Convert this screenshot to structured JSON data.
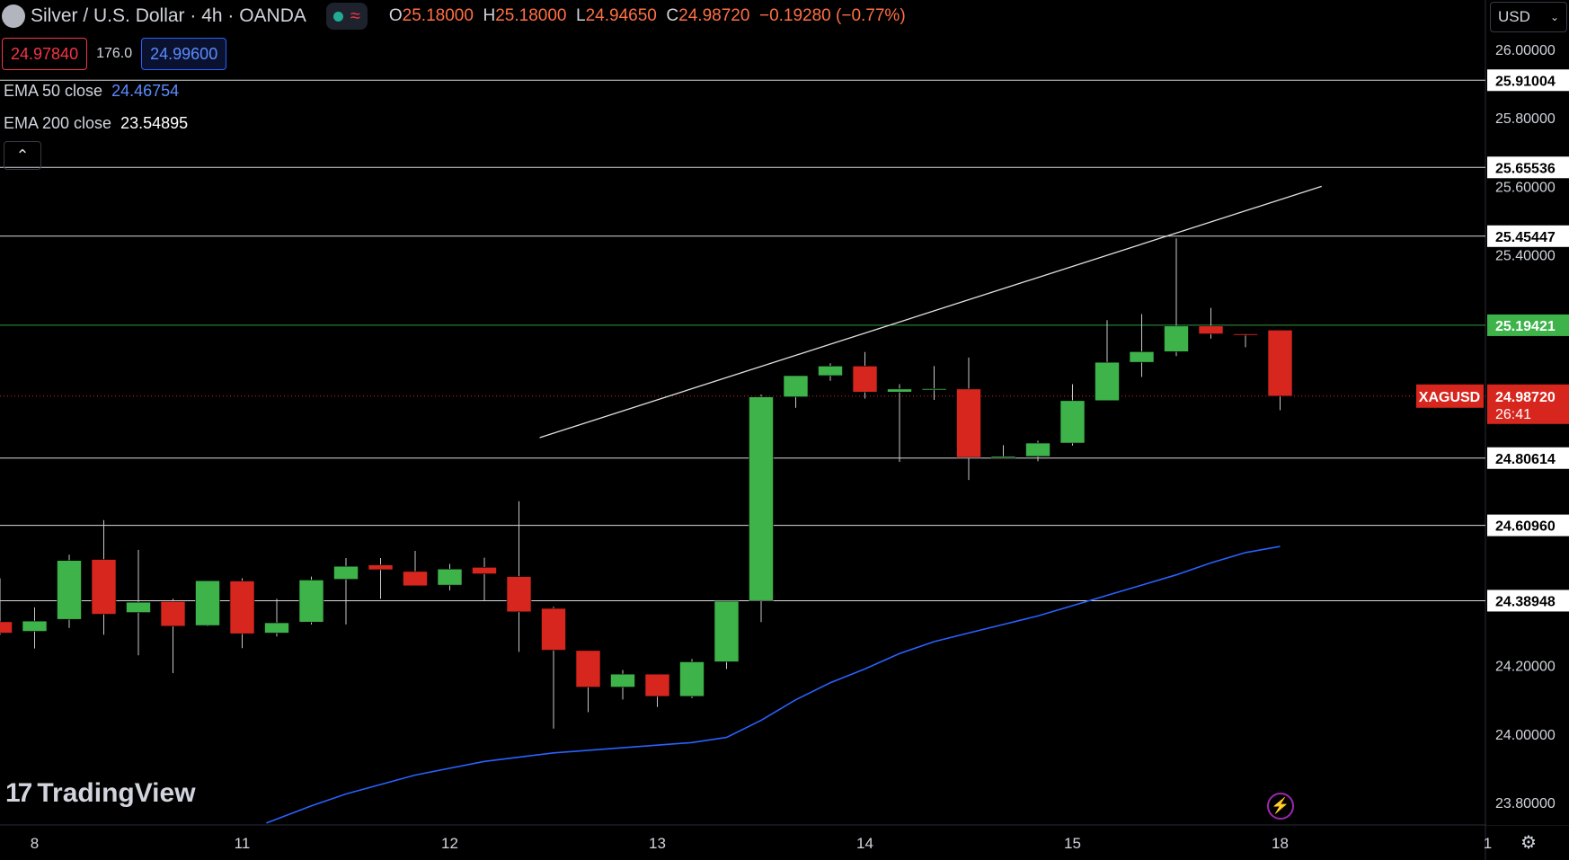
{
  "header": {
    "title": "Silver / U.S. Dollar · 4h · OANDA",
    "ohlc_open_label": "O",
    "ohlc_open": "25.18000",
    "ohlc_high_label": "H",
    "ohlc_high": "25.18000",
    "ohlc_low_label": "L",
    "ohlc_low": "24.94650",
    "ohlc_close_label": "C",
    "ohlc_close": "24.98720",
    "change": "−0.19280 (−0.77%)"
  },
  "trade": {
    "sell_price": "24.97840",
    "spread": "176.0",
    "buy_price": "24.99600"
  },
  "indicators": [
    {
      "name": "EMA 50 close",
      "value": "24.46754"
    },
    {
      "name": "EMA 200 close",
      "value": "23.54895"
    }
  ],
  "currency": "USD",
  "brand": "TradingView",
  "colors": {
    "up": "#3db34a",
    "down": "#d7261e",
    "ema50": "#2962ff",
    "bg": "#000000",
    "accent_label": "#d7261e"
  },
  "chart_data": {
    "type": "candlestick",
    "symbol": "XAGUSD",
    "ylim": [
      23.72,
      26.07
    ],
    "y_ticks": [
      "26.00000",
      "25.80000",
      "25.60000",
      "25.40000",
      "24.20000",
      "24.00000",
      "23.80000"
    ],
    "x_ticks": [
      {
        "label": "8",
        "idx": 1
      },
      {
        "label": "11",
        "idx": 7
      },
      {
        "label": "12",
        "idx": 13
      },
      {
        "label": "13",
        "idx": 19
      },
      {
        "label": "14",
        "idx": 25
      },
      {
        "label": "15",
        "idx": 31
      },
      {
        "label": "18",
        "idx": 37
      },
      {
        "label": "1",
        "idx": 43
      }
    ],
    "candles": [
      {
        "o": 24.328,
        "h": 24.455,
        "l": 24.29,
        "c": 24.295
      },
      {
        "o": 24.3,
        "h": 24.37,
        "l": 24.25,
        "c": 24.33
      },
      {
        "o": 24.335,
        "h": 24.524,
        "l": 24.31,
        "c": 24.507
      },
      {
        "o": 24.51,
        "h": 24.625,
        "l": 24.29,
        "c": 24.35
      },
      {
        "o": 24.355,
        "h": 24.538,
        "l": 24.23,
        "c": 24.385
      },
      {
        "o": 24.387,
        "h": 24.395,
        "l": 24.178,
        "c": 24.315
      },
      {
        "o": 24.317,
        "h": 24.447,
        "l": 24.315,
        "c": 24.448
      },
      {
        "o": 24.447,
        "h": 24.455,
        "l": 24.251,
        "c": 24.293
      },
      {
        "o": 24.295,
        "h": 24.395,
        "l": 24.285,
        "c": 24.325
      },
      {
        "o": 24.327,
        "h": 24.46,
        "l": 24.32,
        "c": 24.45
      },
      {
        "o": 24.452,
        "h": 24.514,
        "l": 24.32,
        "c": 24.49
      },
      {
        "o": 24.494,
        "h": 24.514,
        "l": 24.395,
        "c": 24.48
      },
      {
        "o": 24.475,
        "h": 24.535,
        "l": 24.455,
        "c": 24.433
      },
      {
        "o": 24.435,
        "h": 24.497,
        "l": 24.42,
        "c": 24.482
      },
      {
        "o": 24.487,
        "h": 24.515,
        "l": 24.39,
        "c": 24.468
      },
      {
        "o": 24.46,
        "h": 24.68,
        "l": 24.24,
        "c": 24.357
      },
      {
        "o": 24.367,
        "h": 24.372,
        "l": 24.016,
        "c": 24.245
      },
      {
        "o": 24.244,
        "h": 24.244,
        "l": 24.064,
        "c": 24.137
      },
      {
        "o": 24.137,
        "h": 24.187,
        "l": 24.101,
        "c": 24.175
      },
      {
        "o": 24.175,
        "h": 24.175,
        "l": 24.079,
        "c": 24.11
      },
      {
        "o": 24.11,
        "h": 24.219,
        "l": 24.105,
        "c": 24.211
      },
      {
        "o": 24.211,
        "h": 24.389,
        "l": 24.19,
        "c": 24.388
      },
      {
        "o": 24.39,
        "h": 24.992,
        "l": 24.327,
        "c": 24.985
      },
      {
        "o": 24.985,
        "h": 25.047,
        "l": 24.953,
        "c": 25.047
      },
      {
        "o": 25.047,
        "h": 25.083,
        "l": 25.032,
        "c": 25.075
      },
      {
        "o": 25.075,
        "h": 25.116,
        "l": 24.98,
        "c": 24.999
      },
      {
        "o": 24.999,
        "h": 25.022,
        "l": 24.795,
        "c": 25.008
      },
      {
        "o": 25.009,
        "h": 25.075,
        "l": 24.976,
        "c": 25.009
      },
      {
        "o": 25.008,
        "h": 25.1,
        "l": 24.742,
        "c": 24.808
      },
      {
        "o": 24.808,
        "h": 24.844,
        "l": 24.808,
        "c": 24.811
      },
      {
        "o": 24.811,
        "h": 24.857,
        "l": 24.797,
        "c": 24.85
      },
      {
        "o": 24.85,
        "h": 25.022,
        "l": 24.843,
        "c": 24.974
      },
      {
        "o": 24.974,
        "h": 25.209,
        "l": 24.974,
        "c": 25.086
      },
      {
        "o": 25.086,
        "h": 25.227,
        "l": 25.043,
        "c": 25.117
      },
      {
        "o": 25.117,
        "h": 25.448,
        "l": 25.104,
        "c": 25.192
      },
      {
        "o": 25.192,
        "h": 25.245,
        "l": 25.155,
        "c": 25.169
      },
      {
        "o": 25.169,
        "h": 25.17,
        "l": 25.13,
        "c": 25.165
      },
      {
        "o": 25.18,
        "h": 25.18,
        "l": 24.946,
        "c": 24.987
      }
    ],
    "ema50": [
      {
        "idx": 7.7,
        "v": 23.74
      },
      {
        "idx": 9,
        "v": 23.79
      },
      {
        "idx": 10,
        "v": 23.825
      },
      {
        "idx": 12,
        "v": 23.88
      },
      {
        "idx": 14,
        "v": 23.92
      },
      {
        "idx": 16,
        "v": 23.945
      },
      {
        "idx": 18,
        "v": 23.96
      },
      {
        "idx": 20,
        "v": 23.975
      },
      {
        "idx": 21,
        "v": 23.99
      },
      {
        "idx": 22,
        "v": 24.04
      },
      {
        "idx": 23,
        "v": 24.1
      },
      {
        "idx": 24,
        "v": 24.15
      },
      {
        "idx": 25,
        "v": 24.19
      },
      {
        "idx": 26,
        "v": 24.235
      },
      {
        "idx": 27,
        "v": 24.27
      },
      {
        "idx": 28,
        "v": 24.295
      },
      {
        "idx": 29,
        "v": 24.32
      },
      {
        "idx": 30,
        "v": 24.345
      },
      {
        "idx": 31,
        "v": 24.375
      },
      {
        "idx": 32,
        "v": 24.405
      },
      {
        "idx": 33,
        "v": 24.435
      },
      {
        "idx": 34,
        "v": 24.465
      },
      {
        "idx": 35,
        "v": 24.5
      },
      {
        "idx": 36,
        "v": 24.53
      },
      {
        "idx": 37,
        "v": 24.548
      }
    ],
    "horizontal_levels": [
      {
        "value": 25.91004,
        "label": "25.91004",
        "color": "#ffffff"
      },
      {
        "value": 25.65536,
        "label": "25.65536",
        "color": "#ffffff"
      },
      {
        "value": 25.45447,
        "label": "25.45447",
        "color": "#ffffff"
      },
      {
        "value": 25.19421,
        "label": "25.19421",
        "color": "#3db34a"
      },
      {
        "value": 24.80614,
        "label": "24.80614",
        "color": "#ffffff"
      },
      {
        "value": 24.6096,
        "label": "24.60960",
        "color": "#ffffff"
      },
      {
        "value": 24.38948,
        "label": "24.38948",
        "color": "#ffffff"
      }
    ],
    "trend_line": {
      "from": {
        "idx": 15.6,
        "v": 24.866
      },
      "to": {
        "idx": 38.2,
        "v": 25.6
      }
    },
    "last_price": {
      "value": 24.9872,
      "label": "24.98720",
      "countdown": "26:41",
      "symbol": "XAGUSD"
    }
  }
}
